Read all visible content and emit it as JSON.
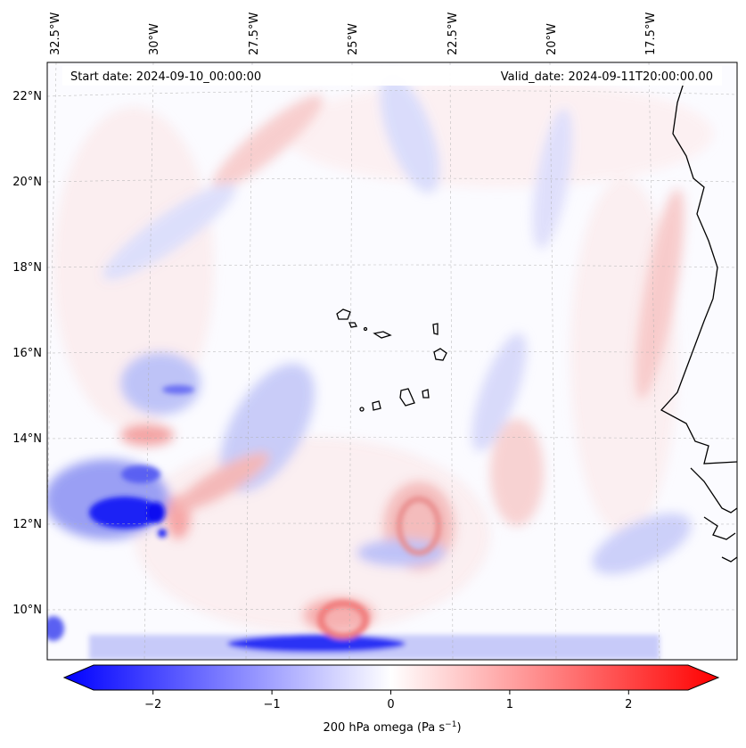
{
  "map": {
    "start_date_text": "Start date: 2024-09-10_00:00:00",
    "valid_date_text": "Valid_date: 2024-09-11T20:00:00.00",
    "lon_labels": [
      "32.5°W",
      "30°W",
      "27.5°W",
      "25°W",
      "22.5°W",
      "20°W",
      "17.5°W"
    ],
    "lat_labels": [
      "22°N",
      "20°N",
      "18°N",
      "16°N",
      "14°N",
      "12°N",
      "10°N"
    ],
    "colormap": {
      "min_color": "#0000ff",
      "mid_color": "#ffffff",
      "max_color": "#ff0000"
    }
  },
  "colorbar": {
    "label_prefix": "200 hPa omega (Pa s",
    "label_exp": "−1",
    "label_suffix": ")",
    "ticks": [
      {
        "value": -2,
        "label": "−2"
      },
      {
        "value": -1,
        "label": "−1"
      },
      {
        "value": 0,
        "label": "0"
      },
      {
        "value": 1,
        "label": "1"
      },
      {
        "value": 2,
        "label": "2"
      }
    ],
    "range": [
      -2.5,
      2.5
    ]
  }
}
